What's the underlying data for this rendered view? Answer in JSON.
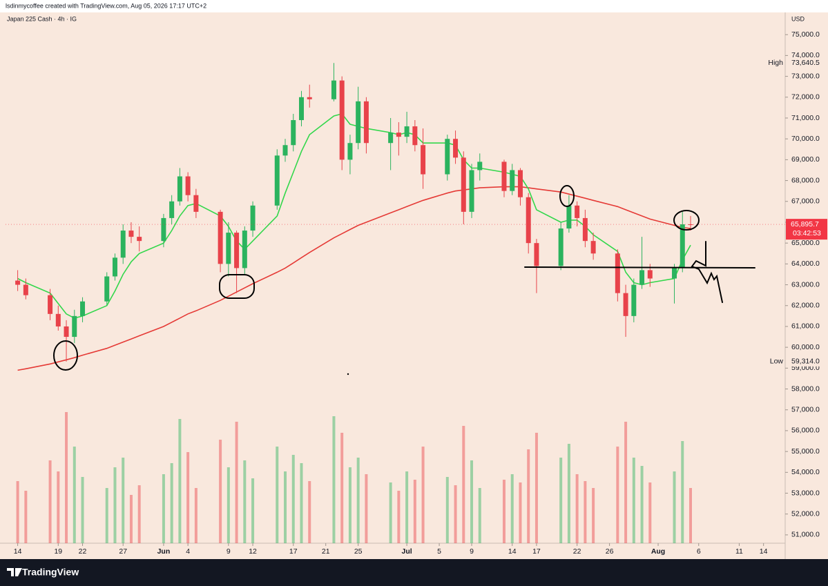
{
  "header": {
    "author_line": "lsdinmycoffee created with TradingView.com, Aug 05, 2026 17:17 UTC+2"
  },
  "chart_data": {
    "type": "candlestick",
    "title": "Japan 225 Cash · 4h · IG",
    "currency": "USD",
    "x": [
      0,
      1,
      4,
      5,
      6,
      7,
      8,
      11,
      12,
      13,
      14,
      15,
      18,
      19,
      20,
      21,
      22,
      25,
      26,
      27,
      28,
      29,
      32,
      33,
      34,
      35,
      36,
      39,
      40,
      41,
      42,
      43,
      46,
      47,
      48,
      49,
      50,
      53,
      54,
      55,
      56,
      57,
      60,
      61,
      62,
      63,
      64,
      67,
      68,
      69,
      70,
      71,
      74,
      75,
      76,
      77,
      78,
      81,
      82,
      83
    ],
    "open": [
      63200,
      63000,
      62500,
      61600,
      61000,
      60500,
      61500,
      62200,
      63400,
      64300,
      65600,
      65300,
      65100,
      66200,
      67000,
      68200,
      67300,
      66500,
      64000,
      65500,
      63800,
      65600,
      66800,
      69200,
      69700,
      70900,
      72000,
      71900,
      72800,
      69000,
      69800,
      71800,
      69800,
      70300,
      70100,
      70600,
      69700,
      68300,
      70000,
      69100,
      66500,
      68500,
      68900,
      67500,
      68500,
      67200,
      65000,
      63900,
      65700,
      66800,
      66200,
      65100,
      64500,
      62600,
      61500,
      63000,
      63700,
      63300,
      63800,
      65900
    ],
    "high": [
      63700,
      63300,
      62800,
      62000,
      61300,
      61800,
      62400,
      63600,
      64500,
      65900,
      66000,
      65800,
      66400,
      67300,
      68600,
      68400,
      67600,
      66600,
      66000,
      65600,
      65800,
      67000,
      69500,
      70000,
      71200,
      72300,
      72600,
      73640.5,
      73000,
      70200,
      72500,
      72000,
      71000,
      70800,
      71300,
      70900,
      70500,
      70200,
      70400,
      69400,
      68800,
      69300,
      69000,
      68800,
      68600,
      67400,
      65200,
      66000,
      67300,
      67000,
      66600,
      65500,
      64700,
      63000,
      63300,
      65300,
      64000,
      64000,
      66500,
      66300
    ],
    "low": [
      62700,
      62300,
      61300,
      60800,
      59314,
      60200,
      61200,
      62000,
      63200,
      64000,
      65000,
      64600,
      64800,
      65900,
      66800,
      67000,
      66200,
      63600,
      63400,
      62600,
      63500,
      65300,
      66600,
      68900,
      69400,
      70600,
      71500,
      71800,
      68500,
      68300,
      69500,
      69300,
      68500,
      69200,
      69800,
      69400,
      67600,
      68000,
      68800,
      65900,
      66200,
      68000,
      67200,
      67300,
      66800,
      64500,
      62600,
      63700,
      65500,
      65800,
      64800,
      64200,
      62200,
      60500,
      61200,
      62800,
      62900,
      62100,
      63600,
      65600
    ],
    "close": [
      63000,
      62500,
      61600,
      61000,
      60500,
      61500,
      62200,
      63400,
      64300,
      65600,
      65300,
      65100,
      66200,
      67000,
      68200,
      67300,
      66500,
      64000,
      65500,
      63800,
      65600,
      66800,
      69200,
      69700,
      70900,
      72000,
      71900,
      72800,
      69000,
      69800,
      71800,
      69800,
      70300,
      70100,
      70600,
      69700,
      68300,
      70000,
      69100,
      66500,
      68500,
      68900,
      67500,
      68500,
      67200,
      65000,
      63900,
      65700,
      66800,
      66200,
      65100,
      64500,
      62600,
      61500,
      63000,
      63700,
      63300,
      63800,
      65900,
      65895.7
    ],
    "volume": [
      45,
      38,
      60,
      52,
      95,
      70,
      48,
      40,
      55,
      62,
      35,
      42,
      50,
      58,
      90,
      66,
      40,
      75,
      55,
      88,
      60,
      47,
      70,
      52,
      64,
      58,
      45,
      92,
      80,
      55,
      62,
      50,
      44,
      38,
      52,
      46,
      70,
      48,
      42,
      85,
      60,
      40,
      46,
      50,
      44,
      68,
      80,
      62,
      72,
      50,
      45,
      40,
      70,
      88,
      62,
      56,
      44,
      52,
      74,
      40
    ],
    "up_color": "#2bb35e",
    "down_color": "#e8424a",
    "moving_averages": [
      {
        "color": "#e53935",
        "values": [
          58900,
          58970,
          59200,
          59300,
          59400,
          59500,
          59620,
          59950,
          60100,
          60250,
          60400,
          60550,
          61000,
          61200,
          61400,
          61600,
          61750,
          62250,
          62450,
          62650,
          62850,
          63050,
          63600,
          63800,
          64050,
          64300,
          64550,
          65250,
          65450,
          65650,
          65850,
          66000,
          66450,
          66600,
          66750,
          66900,
          67050,
          67400,
          67500,
          67550,
          67600,
          67650,
          67700,
          67700,
          67700,
          67650,
          67600,
          67450,
          67350,
          67250,
          67150,
          67050,
          66750,
          66600,
          66450,
          66300,
          66150,
          65850,
          65750,
          65700
        ]
      },
      {
        "color": "#32d74b",
        "values": [
          63300,
          63100,
          62600,
          62100,
          61600,
          61400,
          61500,
          62000,
          62700,
          63500,
          64100,
          64500,
          65000,
          65600,
          66300,
          66800,
          66900,
          66300,
          65800,
          65100,
          64700,
          65100,
          66300,
          67400,
          68400,
          69400,
          70200,
          71100,
          71200,
          70700,
          70600,
          70500,
          70300,
          70200,
          70300,
          70200,
          69800,
          69800,
          69700,
          69000,
          68600,
          68600,
          68400,
          68300,
          68200,
          67600,
          66600,
          66000,
          66100,
          66100,
          65800,
          65400,
          64600,
          63600,
          63100,
          63000,
          63100,
          63300,
          64200,
          64900
        ]
      }
    ],
    "xlim": [
      -1.5,
      94.5
    ],
    "xticks": [
      {
        "value": 0,
        "label": "14"
      },
      {
        "value": 5,
        "label": "19"
      },
      {
        "value": 8,
        "label": "22"
      },
      {
        "value": 13,
        "label": "27"
      },
      {
        "value": 18,
        "label": "Jun"
      },
      {
        "value": 21,
        "label": "4"
      },
      {
        "value": 26,
        "label": "9"
      },
      {
        "value": 29,
        "label": "12"
      },
      {
        "value": 34,
        "label": "17"
      },
      {
        "value": 38,
        "label": "21"
      },
      {
        "value": 42,
        "label": "25"
      },
      {
        "value": 48,
        "label": "Jul"
      },
      {
        "value": 52,
        "label": "5"
      },
      {
        "value": 56,
        "label": "9"
      },
      {
        "value": 61,
        "label": "14"
      },
      {
        "value": 64,
        "label": "17"
      },
      {
        "value": 69,
        "label": "22"
      },
      {
        "value": 73,
        "label": "26"
      },
      {
        "value": 79,
        "label": "Aug"
      },
      {
        "value": 84,
        "label": "6"
      },
      {
        "value": 89,
        "label": "11"
      },
      {
        "value": 92,
        "label": "14"
      }
    ],
    "ylim": [
      50600,
      76000
    ],
    "yticks": [
      {
        "value": 51000,
        "label": "51,000.0"
      },
      {
        "value": 52000,
        "label": "52,000.0"
      },
      {
        "value": 53000,
        "label": "53,000.0"
      },
      {
        "value": 54000,
        "label": "54,000.0"
      },
      {
        "value": 55000,
        "label": "55,000.0"
      },
      {
        "value": 56000,
        "label": "56,000.0"
      },
      {
        "value": 57000,
        "label": "57,000.0"
      },
      {
        "value": 58000,
        "label": "58,000.0"
      },
      {
        "value": 59000,
        "label": "59,000.0"
      },
      {
        "value": 60000,
        "label": "60,000.0"
      },
      {
        "value": 61000,
        "label": "61,000.0"
      },
      {
        "value": 62000,
        "label": "62,000.0"
      },
      {
        "value": 63000,
        "label": "63,000.0"
      },
      {
        "value": 64000,
        "label": "64,000.0"
      },
      {
        "value": 65000,
        "label": "65,000.0"
      },
      {
        "value": 66000,
        "label": "66,000.0"
      },
      {
        "value": 67000,
        "label": "67,000.0"
      },
      {
        "value": 68000,
        "label": "68,000.0"
      },
      {
        "value": 69000,
        "label": "69,000.0"
      },
      {
        "value": 70000,
        "label": "70,000.0"
      },
      {
        "value": 71000,
        "label": "71,000.0"
      },
      {
        "value": 72000,
        "label": "72,000.0"
      },
      {
        "value": 73000,
        "label": "73,000.0"
      },
      {
        "value": 74000,
        "label": "74,000.0"
      },
      {
        "value": 75000,
        "label": "75,000.0"
      }
    ],
    "high_marker": {
      "text": "High",
      "value": 73640.5,
      "label": "73,640.5"
    },
    "low_marker": {
      "text": "Low",
      "value": 59314,
      "label": "59,314.0"
    },
    "last_price": {
      "value": 65895.7,
      "label": "65,895.7",
      "countdown": "03:42:53",
      "color": "#f23645"
    }
  },
  "footer": {
    "brand": "TradingView"
  }
}
